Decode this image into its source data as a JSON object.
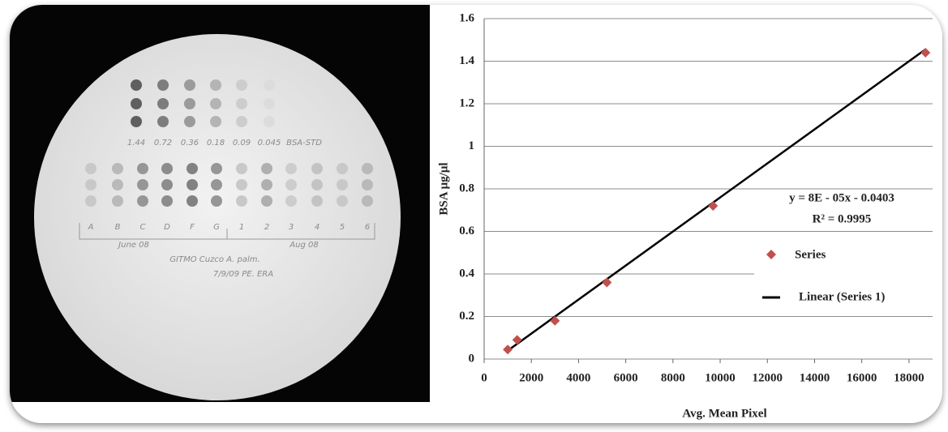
{
  "photo": {
    "std_labels": [
      "1.44",
      "0.72",
      "0.36",
      "0.18",
      "0.09",
      "0.045",
      "BSA-STD"
    ],
    "sample_labels": [
      "A",
      "B",
      "C",
      "D",
      "F",
      "G",
      "1",
      "2",
      "3",
      "4",
      "5",
      "6"
    ],
    "group_labels": [
      "June 08",
      "Aug 08"
    ],
    "notes": [
      "GITMO Cuzco A. palm.",
      "7/9/09 PE. ERA"
    ]
  },
  "chart_data": {
    "type": "scatter",
    "x_label": "Avg. Mean Pixel",
    "y_label": "BSA µg/µl",
    "series": [
      {
        "name": "Series",
        "color": "#c0504d",
        "x": [
          1000,
          1400,
          3000,
          5200,
          9700,
          18700
        ],
        "values": [
          0.045,
          0.09,
          0.18,
          0.36,
          0.72,
          1.44
        ]
      }
    ],
    "trendline": {
      "name": "Linear (Series 1)",
      "color": "#000000",
      "slope": 8e-05,
      "intercept": -0.0403,
      "x": [
        1000,
        18700
      ]
    },
    "annotations": [
      "y = 8E - 05x - 0.0403",
      "R² = 0.9995"
    ],
    "xlim": [
      0,
      19000
    ],
    "ylim": [
      0,
      1.6
    ],
    "xticks": [
      0,
      2000,
      4000,
      6000,
      8000,
      10000,
      12000,
      14000,
      16000,
      18000
    ],
    "yticks": [
      0,
      0.2,
      0.4,
      0.6,
      0.8,
      1,
      1.2,
      1.4,
      1.6
    ],
    "grid": true
  }
}
